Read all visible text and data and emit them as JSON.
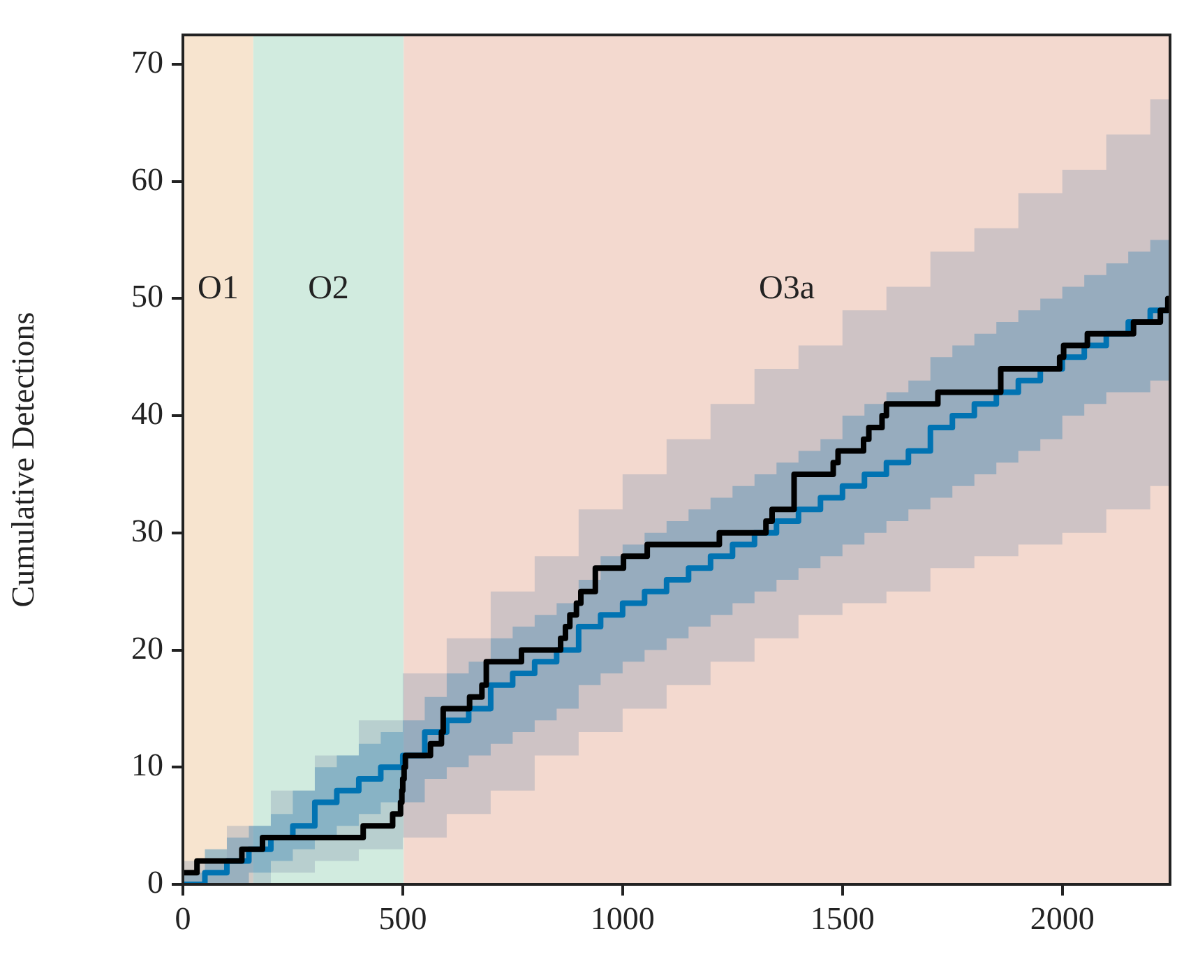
{
  "chart_data": {
    "type": "step",
    "ylabel": "Cumulative Detections",
    "xlim": [
      0,
      2245
    ],
    "xticks": [
      0,
      500,
      1000,
      1500,
      2000
    ],
    "ylim": [
      0,
      72.5
    ],
    "yticks": [
      0,
      10,
      20,
      30,
      40,
      50,
      60,
      70
    ],
    "grid": false,
    "legend": false,
    "marker": "none",
    "line_style": "solid",
    "bands": [
      {
        "axis": "x",
        "from": 0,
        "to": 160,
        "color": "#f7e4cf",
        "label": "O1"
      },
      {
        "axis": "x",
        "from": 160,
        "to": 502,
        "color": "#d1ebdf",
        "label": "O2"
      },
      {
        "axis": "x",
        "from": 502,
        "to": 2245,
        "color": "#f3d9cf",
        "label": "O3a"
      }
    ],
    "series": [
      {
        "color": "#8a9bb3",
        "x": [
          0,
          100,
          200,
          300,
          400,
          500,
          600,
          700,
          800,
          900,
          1000,
          1100,
          1200,
          1300,
          1400,
          1500,
          1600,
          1700,
          1800,
          1900,
          2000,
          2100,
          2200,
          2245
        ],
        "values": [
          null,
          null,
          null,
          null,
          null,
          null,
          null,
          null,
          null,
          null,
          null,
          null,
          null,
          null,
          null,
          null,
          null,
          null,
          null,
          null,
          null,
          null,
          null,
          null
        ],
        "lower": [
          0,
          0,
          1,
          2,
          3,
          4,
          6,
          8,
          11,
          13,
          15,
          17,
          19,
          21,
          23,
          24,
          25,
          27,
          28,
          29,
          30,
          32,
          34,
          35
        ],
        "upper": [
          2,
          5,
          8,
          11,
          14,
          18,
          21,
          25,
          28,
          32,
          35,
          38,
          41,
          44,
          46,
          49,
          51,
          54,
          56,
          59,
          61,
          64,
          67,
          69
        ]
      },
      {
        "color": "#0173b2",
        "x": [
          0,
          50,
          100,
          150,
          200,
          250,
          300,
          350,
          400,
          450,
          500,
          550,
          600,
          650,
          700,
          750,
          800,
          850,
          900,
          950,
          1000,
          1050,
          1100,
          1150,
          1200,
          1250,
          1300,
          1350,
          1400,
          1450,
          1500,
          1550,
          1600,
          1650,
          1700,
          1750,
          1800,
          1850,
          1900,
          1950,
          2000,
          2050,
          2100,
          2150,
          2200,
          2245
        ],
        "values": [
          0,
          1,
          2,
          3,
          4,
          5,
          7,
          8,
          9,
          10,
          11,
          13,
          14,
          15,
          17,
          18,
          19,
          20,
          22,
          23,
          24,
          25,
          26,
          27,
          28,
          29,
          30,
          31,
          32,
          33,
          34,
          35,
          36,
          37,
          39,
          40,
          41,
          42,
          43,
          44,
          45,
          46,
          47,
          48,
          49,
          50
        ],
        "lower": [
          0,
          0,
          0,
          1,
          2,
          3,
          4,
          5,
          6,
          7,
          7,
          9,
          10,
          11,
          12,
          13,
          14,
          15,
          17,
          18,
          19,
          20,
          21,
          22,
          23,
          24,
          25,
          26,
          27,
          28,
          29,
          30,
          31,
          32,
          33,
          34,
          35,
          36,
          37,
          38,
          40,
          41,
          42,
          42,
          43,
          44
        ],
        "upper": [
          1,
          3,
          4,
          5,
          6,
          8,
          10,
          11,
          12,
          13,
          14,
          16,
          18,
          19,
          21,
          22,
          23,
          24,
          26,
          28,
          29,
          30,
          31,
          32,
          33,
          34,
          35,
          36,
          37,
          38,
          40,
          41,
          42,
          43,
          45,
          46,
          47,
          48,
          49,
          50,
          51,
          52,
          53,
          54,
          55,
          57
        ]
      },
      {
        "color": "#000000",
        "x": [
          0,
          32,
          134,
          181,
          410,
          477,
          495,
          498,
          500,
          503,
          506,
          563,
          588,
          592,
          652,
          680,
          690,
          770,
          859,
          870,
          880,
          895,
          905,
          938,
          1002,
          1056,
          1220,
          1326,
          1340,
          1390,
          1479,
          1490,
          1548,
          1560,
          1590,
          1600,
          1717,
          1860,
          1994,
          2003,
          2057,
          2162,
          2223,
          2240,
          2245
        ],
        "values": [
          1,
          2,
          3,
          4,
          5,
          6,
          7,
          8,
          9,
          10,
          11,
          12,
          13,
          15,
          16,
          17,
          19,
          20,
          21,
          22,
          23,
          24,
          25,
          27,
          28,
          29,
          30,
          31,
          32,
          35,
          36,
          37,
          38,
          39,
          40,
          41,
          42,
          44,
          45,
          46,
          47,
          48,
          49,
          50,
          50
        ]
      }
    ]
  }
}
